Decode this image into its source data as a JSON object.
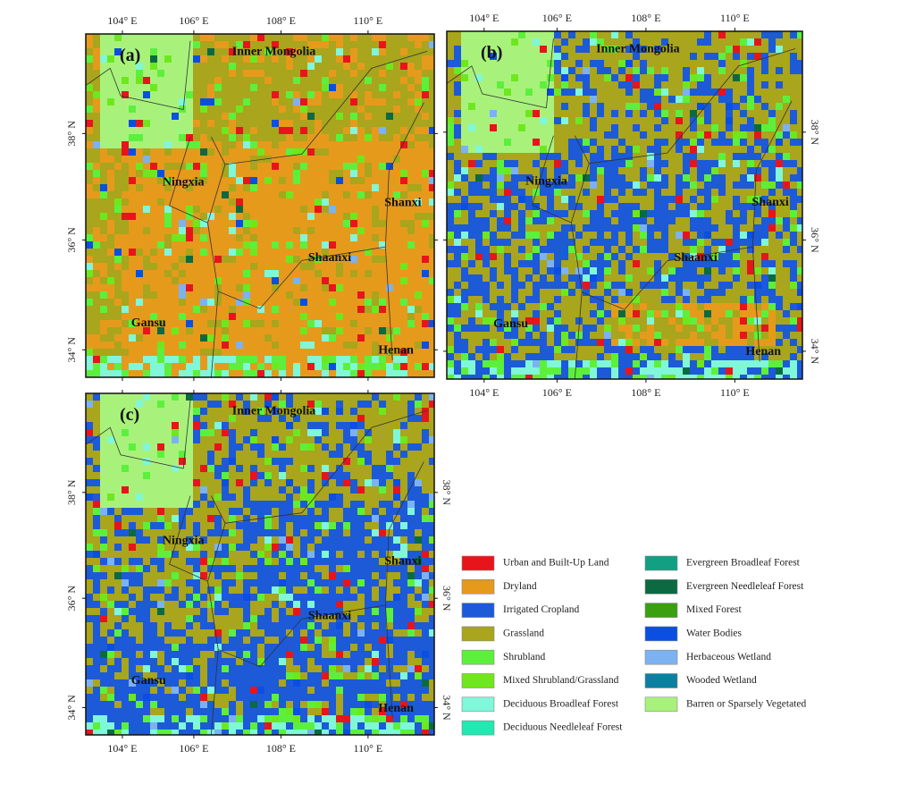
{
  "panels": [
    {
      "label": "(a)",
      "regions": [
        "Inner Mongolia",
        "Ningxia",
        "Shanxi",
        "Shaanxi",
        "Gansu",
        "Henan"
      ]
    },
    {
      "label": "(b)",
      "regions": [
        "Inner Mongolia",
        "Ningxia",
        "Shanxi",
        "Shaanxi",
        "Gansu",
        "Henan"
      ]
    },
    {
      "label": "(c)",
      "regions": [
        "Inner Mongolia",
        "Ningxia",
        "Shanxi",
        "Shaanxi",
        "Gansu",
        "Henan"
      ]
    }
  ],
  "lon_ticks": [
    "104° E",
    "106° E",
    "108° E",
    "110° E"
  ],
  "lat_ticks": [
    "38° N",
    "36° N",
    "34° N"
  ],
  "legend": [
    {
      "name": "Urban and Built-Up Land",
      "color": "#e8141c"
    },
    {
      "name": "Dryland",
      "color": "#e69a1c"
    },
    {
      "name": "Irrigated Cropland",
      "color": "#1c5ad8"
    },
    {
      "name": "Grassland",
      "color": "#a9a51c"
    },
    {
      "name": "Shrubland",
      "color": "#5cf03c"
    },
    {
      "name": "Mixed Shrubland/Grassland",
      "color": "#6ee81e"
    },
    {
      "name": "Deciduous Broadleaf Forest",
      "color": "#80f7d8"
    },
    {
      "name": "Deciduous Needleleaf Forest",
      "color": "#22e8b2"
    },
    {
      "name": "Evergreen Broadleaf Forest",
      "color": "#12a082"
    },
    {
      "name": "Evergreen Needleleaf Forest",
      "color": "#0b6a42"
    },
    {
      "name": "Mixed Forest",
      "color": "#3aa012"
    },
    {
      "name": "Water Bodies",
      "color": "#0a4fe2"
    },
    {
      "name": "Herbaceous Wetland",
      "color": "#7cb2f2"
    },
    {
      "name": "Wooded Wetland",
      "color": "#0b80a2"
    },
    {
      "name": "Barren or Sparsely Vegetated",
      "color": "#a8f27c"
    }
  ]
}
